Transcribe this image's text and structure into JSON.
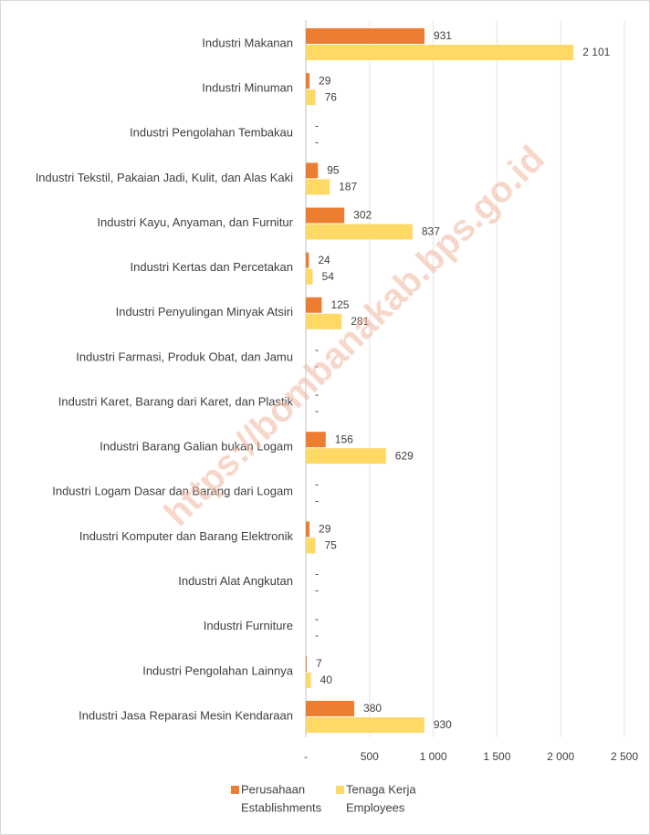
{
  "chart_data": {
    "type": "hbar",
    "watermark": "https://bombanakab.bps.go.id",
    "categories": [
      "Industri Makanan",
      "Industri Minuman",
      "Industri Pengolahan Tembakau",
      "Industri Tekstil, Pakaian Jadi, Kulit, dan Alas Kaki",
      "Industri Kayu, Anyaman, dan Furnitur",
      "Industri Kertas dan Percetakan",
      "Industri Penyulingan Minyak Atsiri",
      "Industri Farmasi, Produk Obat, dan Jamu",
      "Industri Karet, Barang dari Karet, dan Plastik",
      "Industri Barang Galian bukan Logam",
      "Industri Logam Dasar dan Barang dari Logam",
      "Industri Komputer dan Barang Elektronik",
      "Industri Alat Angkutan",
      "Industri Furniture",
      "Industri Pengolahan Lainnya",
      "Industri Jasa Reparasi Mesin Kendaraan"
    ],
    "series": [
      {
        "name": "Perusahaan",
        "name_en": "Establishments",
        "color": "#ed7d31",
        "values": [
          931,
          29,
          0,
          95,
          302,
          24,
          125,
          0,
          0,
          156,
          0,
          29,
          0,
          0,
          7,
          380
        ],
        "value_labels": [
          "931",
          "29",
          "-",
          "95",
          "302",
          "24",
          "125",
          "-",
          "-",
          "156",
          "-",
          "29",
          "-",
          "-",
          "7",
          "380"
        ]
      },
      {
        "name": "Tenaga Kerja",
        "name_en": "Employees",
        "color": "#ffd966",
        "values": [
          2101,
          76,
          0,
          187,
          837,
          54,
          281,
          0,
          0,
          629,
          0,
          75,
          0,
          0,
          40,
          930
        ],
        "value_labels": [
          "2 101",
          "76",
          "-",
          "187",
          "837",
          "54",
          "281",
          "-",
          "-",
          "629",
          "-",
          "75",
          "-",
          "-",
          "40",
          "930"
        ]
      }
    ],
    "xlim": [
      0,
      2500
    ],
    "xticks": [
      {
        "value": 0,
        "label": "-"
      },
      500,
      {
        "value": 1000,
        "label": "1 000"
      },
      {
        "value": 1500,
        "label": "1 500"
      },
      {
        "value": 2000,
        "label": "2 000"
      },
      {
        "value": 2500,
        "label": "2 500"
      }
    ],
    "grid": true
  }
}
